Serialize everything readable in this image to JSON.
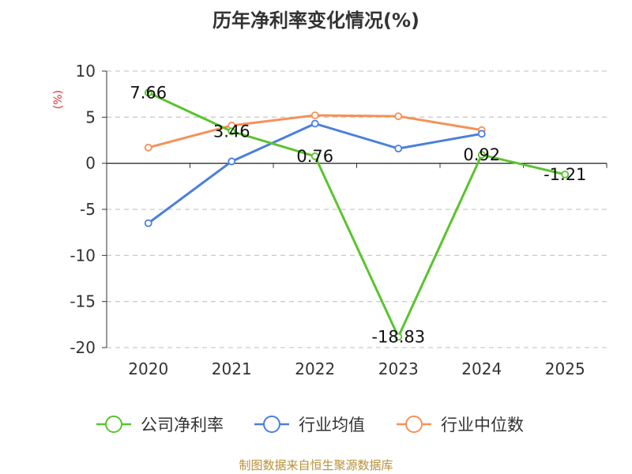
{
  "chart_data": {
    "type": "line",
    "title": "历年净利率变化情况(%)",
    "y_unit": "(%)",
    "categories": [
      "2020",
      "2021",
      "2022",
      "2023",
      "2024",
      "2025"
    ],
    "ylim": [
      -20,
      10
    ],
    "y_ticks": [
      10,
      5,
      0,
      -5,
      -10,
      -15,
      -20
    ],
    "grid": true,
    "legend_position": "bottom",
    "series": [
      {
        "name": "公司净利率",
        "color": "#5bc32f",
        "values": [
          7.66,
          3.46,
          0.76,
          -18.83,
          0.92,
          -1.21
        ],
        "labels": [
          "7.66",
          "3.46",
          "0.76",
          "-18.83",
          "0.92",
          "-1.21"
        ]
      },
      {
        "name": "行业均值",
        "color": "#4a7fdc",
        "values": [
          -6.5,
          0.2,
          4.3,
          1.6,
          3.2,
          null
        ]
      },
      {
        "name": "行业中位数",
        "color": "#f59158",
        "values": [
          1.7,
          4.1,
          5.2,
          5.1,
          3.6,
          null
        ]
      }
    ],
    "source": "制图数据来自恒生聚源数据库"
  }
}
